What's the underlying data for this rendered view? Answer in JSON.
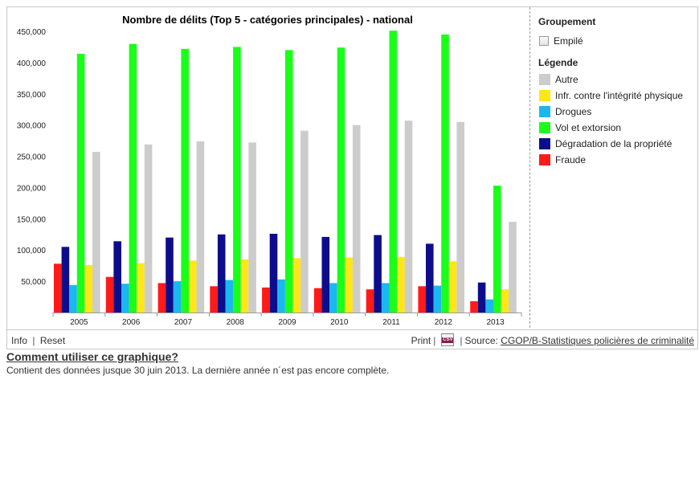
{
  "chart_data": {
    "type": "bar",
    "title": "Nombre de délits (Top 5 - catégories principales) - national",
    "xlabel": "",
    "ylabel": "",
    "ylim": [
      0,
      450000
    ],
    "y_ticks": [
      "50,000",
      "100,000",
      "150,000",
      "200,000",
      "250,000",
      "300,000",
      "350,000",
      "400,000",
      "450,000"
    ],
    "y_tick_values": [
      50000,
      100000,
      150000,
      200000,
      250000,
      300000,
      350000,
      400000,
      450000
    ],
    "categories": [
      "2005",
      "2006",
      "2007",
      "2008",
      "2009",
      "2010",
      "2011",
      "2012",
      "2013"
    ],
    "series": [
      {
        "name": "Fraude",
        "color": "#ff1a1a",
        "values": [
          78000,
          57000,
          47000,
          42000,
          40000,
          39000,
          37000,
          42000,
          18000
        ]
      },
      {
        "name": "Dégradation de la propriété",
        "color": "#0d0d8c",
        "values": [
          105000,
          114000,
          120000,
          125000,
          126000,
          121000,
          124000,
          110000,
          48000
        ]
      },
      {
        "name": "Drogues",
        "color": "#1ab8ee",
        "values": [
          44000,
          46000,
          50000,
          52000,
          53000,
          47000,
          47000,
          43000,
          21000
        ]
      },
      {
        "name": "Vol et extorsion",
        "color": "#1aff1a",
        "values": [
          414000,
          430000,
          422000,
          425000,
          420000,
          424000,
          451000,
          445000,
          203000
        ]
      },
      {
        "name": "Infr. contre l'intégrité physique",
        "color": "#ffe619",
        "values": [
          76000,
          79000,
          83000,
          85000,
          87000,
          88000,
          89000,
          82000,
          37000
        ]
      },
      {
        "name": "Autre",
        "color": "#cccccc",
        "values": [
          257000,
          269000,
          274000,
          272000,
          291000,
          300000,
          307000,
          305000,
          145000
        ]
      }
    ],
    "grid": false,
    "legend": "right"
  },
  "panel": {
    "grouping_heading": "Groupement",
    "stack_label": "Empilé",
    "legend_heading": "Légende",
    "legend_items": [
      {
        "label": "Autre",
        "color": "#cccccc"
      },
      {
        "label": "Infr. contre l'intégrité physique",
        "color": "#ffe619"
      },
      {
        "label": "Drogues",
        "color": "#1ab8ee"
      },
      {
        "label": "Vol et extorsion",
        "color": "#1aff1a"
      },
      {
        "label": "Dégradation de la propriété",
        "color": "#0d0d8c"
      },
      {
        "label": "Fraude",
        "color": "#ff1a1a"
      }
    ]
  },
  "footer": {
    "info_label": "Info",
    "reset_label": "Reset",
    "print_label": "Print",
    "csv_label": "CSV",
    "source_prefix": "Source:",
    "source_link": "CGOP/B-Statistiques policières de criminalité"
  },
  "help_link": "Comment utiliser ce graphique?",
  "note": "Contient des données jusque 30 juin 2013. La dernière année n´est pas encore complète."
}
